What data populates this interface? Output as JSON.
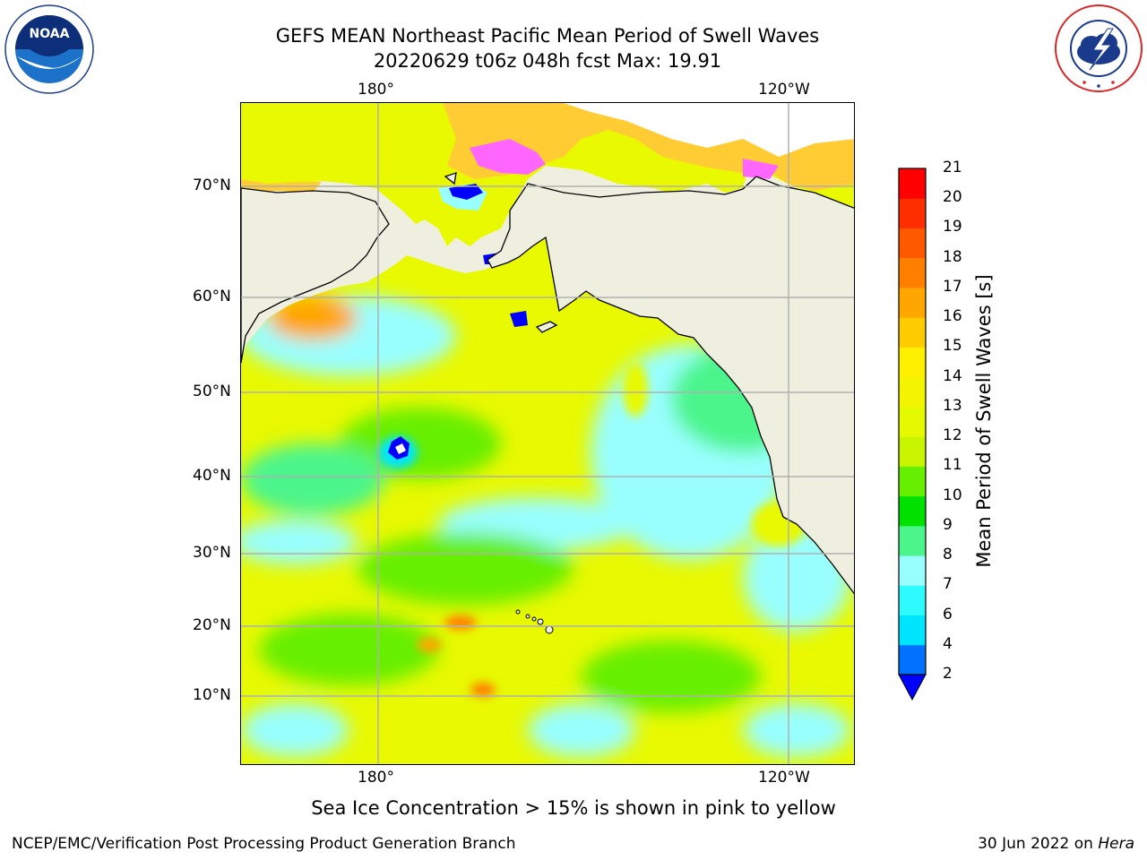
{
  "title": {
    "line1": "GEFS MEAN Northeast Pacific Mean Period of Swell Waves",
    "line2": "20220629 t06z 048h fcst   Max: 19.91"
  },
  "logos": {
    "left": {
      "icon": "noaa-logo",
      "text": "NOAA"
    },
    "right": {
      "icon": "national-weather-service-logo",
      "text": "NATIONAL WEATHER SERVICE"
    }
  },
  "map": {
    "lon_labels": [
      "180°",
      "120°W"
    ],
    "lat_labels": [
      "70°N",
      "60°N",
      "50°N",
      "40°N",
      "30°N",
      "20°N",
      "10°N"
    ],
    "land_color": "#efefdf",
    "coast_color": "#000000",
    "grid_color": "#b0b0b0"
  },
  "colorbar": {
    "title": "Mean Period of Swell Waves [s]",
    "ticks": [
      "2",
      "4",
      "6",
      "7",
      "8",
      "9",
      "10",
      "11",
      "12",
      "13",
      "14",
      "15",
      "16",
      "17",
      "18",
      "19",
      "20",
      "21"
    ],
    "colors": [
      "#0072ff",
      "#00e5ff",
      "#2efbff",
      "#99fffe",
      "#4cf58c",
      "#00e100",
      "#66ef00",
      "#c8f400",
      "#e5f900",
      "#f3f500",
      "#fff000",
      "#ffcc00",
      "#ffa600",
      "#ff8000",
      "#ff5900",
      "#ff2e00",
      "#ff0000"
    ],
    "under_color": "#0000ff"
  },
  "note": "Sea Ice Concentration > 15% is shown in pink to yellow",
  "footer": {
    "left": "NCEP/EMC/Verification Post Processing Product Generation Branch",
    "date": "30 Jun 2022 on ",
    "host": "Hera"
  }
}
